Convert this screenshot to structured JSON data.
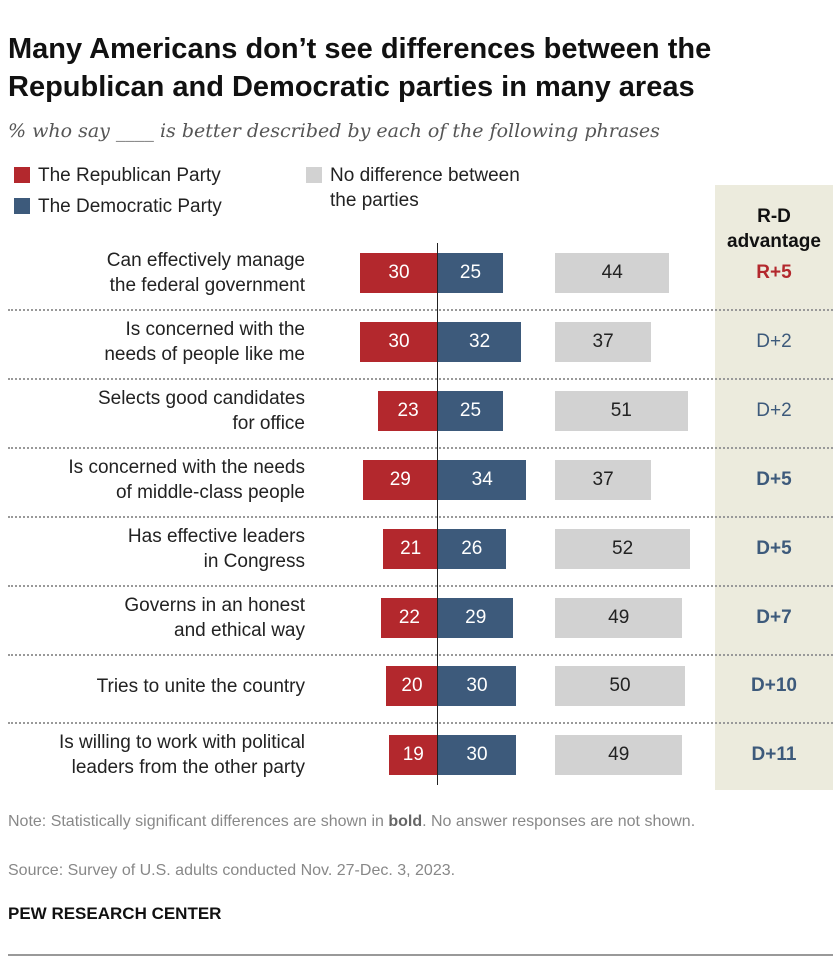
{
  "title": "Many Americans don’t see differences between the Republican and Democratic parties in many areas",
  "subtitle": "% who say ____ is better described by each of the following phrases",
  "colors": {
    "republican": "#b3282d",
    "democratic": "#3d5a7b",
    "none": "#d2d2d2",
    "adv_box": "#ecebdd"
  },
  "chart_data": {
    "type": "bar",
    "legend": {
      "republican": "The Republican Party",
      "democratic": "The Democratic Party",
      "none": "No difference between the parties"
    },
    "adv_header": "R-D advantage",
    "categories": [
      "Can effectively manage the federal government",
      "Is concerned with the needs of people like me",
      "Selects good candidates for office",
      "Is concerned with the needs of middle-class people",
      "Has effective leaders in Congress",
      "Governs in an honest and ethical way",
      "Tries to unite the country",
      "Is willing to work with political leaders from the other party"
    ],
    "label_lines": [
      [
        "Can effectively manage",
        "the federal government"
      ],
      [
        "Is concerned with the",
        "needs of people like me"
      ],
      [
        "Selects good candidates",
        "for office"
      ],
      [
        "Is concerned with the needs",
        "of middle-class people"
      ],
      [
        "Has effective leaders",
        "in Congress"
      ],
      [
        "Governs in an honest",
        "and ethical way"
      ],
      [
        "Tries to unite the country"
      ],
      [
        "Is willing to work with political",
        "leaders from the other party"
      ]
    ],
    "series": [
      {
        "name": "The Republican Party",
        "values": [
          30,
          30,
          23,
          29,
          21,
          22,
          20,
          19
        ]
      },
      {
        "name": "The Democratic Party",
        "values": [
          25,
          32,
          25,
          34,
          26,
          29,
          30,
          30
        ]
      },
      {
        "name": "No difference between the parties",
        "values": [
          44,
          37,
          51,
          37,
          52,
          49,
          50,
          49
        ]
      }
    ],
    "advantage": [
      "R+5",
      "D+2",
      "D+2",
      "D+5",
      "D+5",
      "D+7",
      "D+10",
      "D+11"
    ],
    "advantage_bold": [
      true,
      false,
      false,
      true,
      true,
      true,
      true,
      true
    ]
  },
  "note_prefix": "Note: Statistically significant differences are shown in ",
  "note_bold": "bold",
  "note_suffix": ". No answer responses are not shown.",
  "source": "Source: Survey of U.S. adults conducted Nov. 27-Dec. 3, 2023.",
  "brand": "PEW RESEARCH CENTER"
}
